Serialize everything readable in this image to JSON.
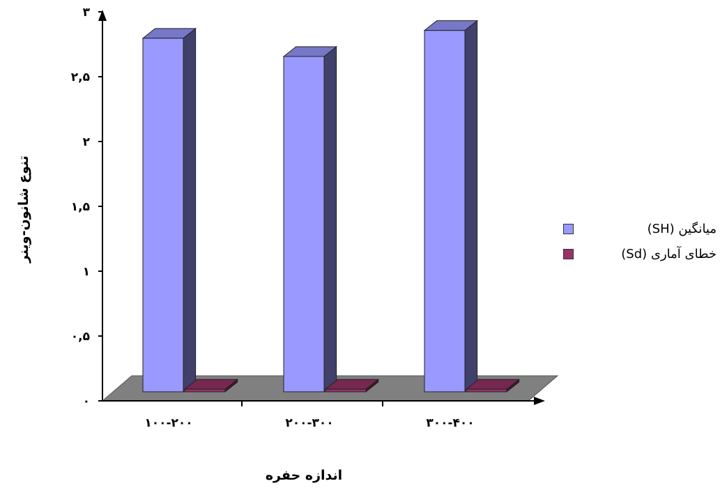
{
  "chart_data": {
    "type": "bar",
    "style": "3d-clustered-column",
    "categories": [
      "۱۰۰-۲۰۰",
      "۲۰۰-۳۰۰",
      "۳۰۰-۴۰۰"
    ],
    "series": [
      {
        "name": "میانگین   (SH)",
        "values": [
          2.72,
          2.58,
          2.78
        ],
        "color": "#9999ff"
      },
      {
        "name": "خطای آماری (Sd)",
        "values": [
          0.02,
          0.02,
          0.02
        ],
        "color": "#993366"
      }
    ],
    "ylim": [
      0,
      3
    ],
    "yticks": [
      {
        "value": 0,
        "label": "۰"
      },
      {
        "value": 0.5,
        "label": "۰,۵"
      },
      {
        "value": 1,
        "label": "۱"
      },
      {
        "value": 1.5,
        "label": "۱,۵"
      },
      {
        "value": 2,
        "label": "۲"
      },
      {
        "value": 2.5,
        "label": "۲,۵"
      },
      {
        "value": 3,
        "label": "۳"
      }
    ],
    "xlabel": "اندازه حفره",
    "ylabel": "تنوع شانون-وینر",
    "grid": false,
    "legend_position": "right",
    "floor_color": "#808080"
  }
}
